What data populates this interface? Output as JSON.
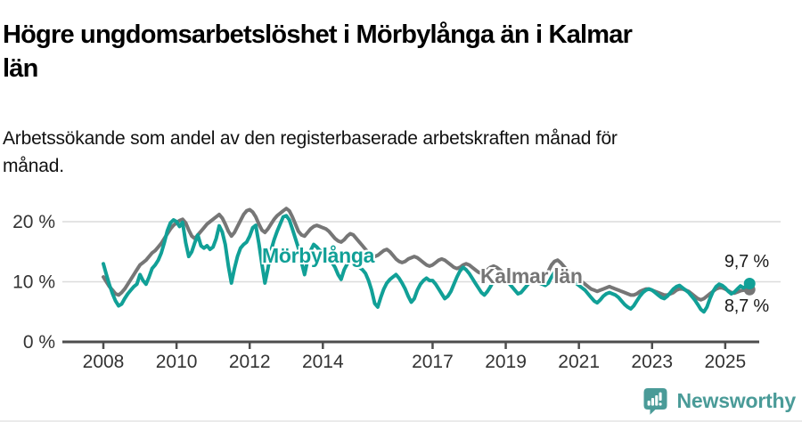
{
  "header": {
    "title_lines": [
      "Högre ungdomsarbetslöshet i Mörbylånga än i Kalmar",
      "län"
    ],
    "subtitle_lines": [
      "Arbetssökande som andel av den registerbaserade arbetskraften månad för",
      "månad."
    ]
  },
  "chart_data": {
    "type": "line",
    "title": "Högre ungdomsarbetslöshet i Mörbylånga än i Kalmar län",
    "subtitle": "Arbetssökande som andel av den registerbaserade arbetskraften månad för månad.",
    "unit": "%",
    "frequency": "monthly",
    "x_start": {
      "year": 2008,
      "month": 1
    },
    "x_end": {
      "year": 2025,
      "month": 9
    },
    "ylim": [
      0,
      22.5
    ],
    "grid": true,
    "grid_values": [
      10,
      20
    ],
    "y_ticks": [
      {
        "value": 0,
        "label": "0 %"
      },
      {
        "value": 10,
        "label": "10 %"
      },
      {
        "value": 20,
        "label": "20 %"
      }
    ],
    "x_ticks": [
      {
        "year": 2008,
        "label": "2008"
      },
      {
        "year": 2010,
        "label": "2010"
      },
      {
        "year": 2012,
        "label": "2012"
      },
      {
        "year": 2014,
        "label": "2014"
      },
      {
        "year": 2017,
        "label": "2017"
      },
      {
        "year": 2019,
        "label": "2019"
      },
      {
        "year": 2021,
        "label": "2021"
      },
      {
        "year": 2023,
        "label": "2023"
      },
      {
        "year": 2025,
        "label": "2025"
      }
    ],
    "axis_color": "#4d4d4d",
    "grid_color": "#dcdcdc",
    "tick_label_color": "#333333",
    "series": [
      {
        "name": "Mörbylånga",
        "color": "#11a097",
        "end_label": "9,7 %",
        "end_value": 9.7,
        "values": [
          13.0,
          11.2,
          9.5,
          8.0,
          6.8,
          6.0,
          6.3,
          7.2,
          8.0,
          8.6,
          9.2,
          9.6,
          11.2,
          10.2,
          9.6,
          10.8,
          12.2,
          12.8,
          13.6,
          14.8,
          16.5,
          18.5,
          19.8,
          20.3,
          20.0,
          19.2,
          19.9,
          16.5,
          14.2,
          15.0,
          16.5,
          17.8,
          16.0,
          15.6,
          16.0,
          15.4,
          15.8,
          17.2,
          19.3,
          18.3,
          16.2,
          12.6,
          9.8,
          12.2,
          14.2,
          15.6,
          16.2,
          16.6,
          17.6,
          19.0,
          19.4,
          16.4,
          13.0,
          9.8,
          12.2,
          15.2,
          17.0,
          18.4,
          19.6,
          20.8,
          21.0,
          20.3,
          18.8,
          17.2,
          15.6,
          13.2,
          11.2,
          13.6,
          15.2,
          16.2,
          15.8,
          15.2,
          15.0,
          14.4,
          13.8,
          13.2,
          12.4,
          11.2,
          10.4,
          12.0,
          13.0,
          13.6,
          13.2,
          12.6,
          12.4,
          12.0,
          11.4,
          10.2,
          8.6,
          6.4,
          5.8,
          7.4,
          8.8,
          9.8,
          10.4,
          10.8,
          11.2,
          10.6,
          9.8,
          8.8,
          7.6,
          6.6,
          7.2,
          8.6,
          9.6,
          10.2,
          10.6,
          10.2,
          10.2,
          9.6,
          8.8,
          8.0,
          7.2,
          7.6,
          8.4,
          9.6,
          10.8,
          11.8,
          12.4,
          12.0,
          11.4,
          10.6,
          9.8,
          9.0,
          8.2,
          7.8,
          8.4,
          9.2,
          10.2,
          11.0,
          11.4,
          11.0,
          10.4,
          9.8,
          9.2,
          8.6,
          8.0,
          8.2,
          8.8,
          9.4,
          10.0,
          10.4,
          10.2,
          9.8,
          9.6,
          9.4,
          9.8,
          10.8,
          11.6,
          12.0,
          11.8,
          11.4,
          11.0,
          10.6,
          10.2,
          9.8,
          9.4,
          9.0,
          8.6,
          8.0,
          7.4,
          6.8,
          6.5,
          7.0,
          7.6,
          8.0,
          8.2,
          8.0,
          7.8,
          7.4,
          6.8,
          6.2,
          5.8,
          5.5,
          6.0,
          6.8,
          7.6,
          8.2,
          8.6,
          8.8,
          8.6,
          8.2,
          7.8,
          7.4,
          7.2,
          7.6,
          8.2,
          8.8,
          9.2,
          9.4,
          9.0,
          8.6,
          8.2,
          7.6,
          7.0,
          6.2,
          5.4,
          5.0,
          5.8,
          7.2,
          8.4,
          9.2,
          9.6,
          9.4,
          9.0,
          8.4,
          8.0,
          8.3,
          8.8,
          9.3,
          9.0,
          9.3,
          9.7
        ]
      },
      {
        "name": "Kalmar län",
        "color": "#767676",
        "end_label": "8,7 %",
        "end_value": 8.7,
        "values": [
          10.8,
          10.0,
          9.2,
          8.6,
          8.0,
          7.8,
          8.2,
          8.8,
          9.6,
          10.4,
          11.2,
          12.0,
          12.8,
          13.2,
          13.6,
          14.2,
          14.8,
          15.2,
          15.8,
          16.4,
          17.2,
          18.0,
          18.8,
          19.4,
          19.8,
          20.2,
          20.4,
          19.8,
          18.6,
          17.6,
          17.2,
          17.8,
          18.4,
          19.0,
          19.6,
          20.0,
          20.4,
          20.8,
          21.2,
          20.6,
          19.6,
          18.4,
          17.6,
          18.2,
          19.2,
          20.2,
          21.2,
          21.8,
          22.0,
          21.6,
          20.8,
          19.6,
          18.6,
          18.2,
          18.8,
          19.6,
          20.4,
          21.0,
          21.4,
          21.8,
          22.2,
          21.8,
          20.8,
          19.6,
          18.4,
          17.8,
          17.6,
          18.2,
          18.8,
          19.2,
          19.4,
          19.2,
          19.0,
          18.8,
          18.4,
          17.8,
          17.2,
          16.8,
          16.6,
          17.0,
          17.6,
          18.0,
          17.8,
          17.2,
          16.6,
          16.0,
          15.4,
          14.8,
          14.4,
          14.2,
          14.4,
          14.8,
          15.2,
          15.4,
          15.0,
          14.4,
          13.8,
          13.4,
          13.2,
          13.4,
          13.8,
          14.0,
          14.2,
          14.0,
          13.6,
          13.2,
          12.8,
          12.6,
          12.8,
          13.2,
          13.6,
          13.8,
          13.6,
          13.2,
          12.8,
          12.4,
          12.2,
          12.4,
          12.8,
          13.0,
          12.8,
          12.4,
          12.0,
          11.6,
          11.4,
          11.6,
          12.0,
          12.4,
          12.6,
          12.4,
          12.0,
          11.6,
          11.2,
          10.8,
          10.6,
          10.4,
          10.4,
          10.6,
          10.8,
          11.0,
          11.0,
          10.8,
          10.6,
          10.4,
          10.6,
          11.0,
          11.8,
          12.8,
          13.4,
          13.6,
          13.2,
          12.6,
          12.0,
          11.6,
          11.2,
          10.8,
          10.4,
          10.0,
          9.6,
          9.2,
          8.8,
          8.6,
          8.4,
          8.6,
          8.8,
          9.0,
          9.2,
          9.0,
          8.8,
          8.6,
          8.4,
          8.2,
          8.0,
          7.8,
          7.8,
          8.0,
          8.4,
          8.6,
          8.8,
          8.8,
          8.6,
          8.4,
          8.2,
          8.0,
          7.8,
          7.8,
          8.0,
          8.2,
          8.6,
          8.8,
          8.8,
          8.6,
          8.4,
          8.0,
          7.6,
          7.2,
          7.0,
          7.2,
          7.6,
          8.0,
          8.4,
          8.8,
          9.0,
          9.0,
          8.8,
          8.5,
          8.2,
          8.1,
          8.3,
          8.5,
          8.6,
          8.6,
          8.7
        ]
      }
    ]
  },
  "footer": {
    "brand": "Newsworthy",
    "brand_color": "#4a9b98"
  }
}
